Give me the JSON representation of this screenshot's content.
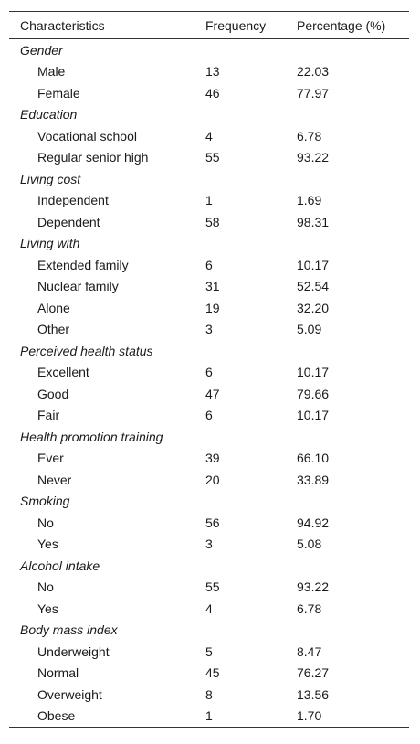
{
  "table": {
    "header": [
      "Characteristics",
      "Frequency",
      "Percentage (%)"
    ],
    "groups": [
      {
        "label": "Gender",
        "rows": [
          [
            "Male",
            "13",
            "22.03"
          ],
          [
            "Female",
            "46",
            "77.97"
          ]
        ]
      },
      {
        "label": "Education",
        "rows": [
          [
            "Vocational school",
            "4",
            "6.78"
          ],
          [
            "Regular senior high",
            "55",
            "93.22"
          ]
        ]
      },
      {
        "label": "Living cost",
        "rows": [
          [
            "Independent",
            "1",
            "1.69"
          ],
          [
            "Dependent",
            "58",
            "98.31"
          ]
        ]
      },
      {
        "label": "Living with",
        "rows": [
          [
            "Extended family",
            "6",
            "10.17"
          ],
          [
            "Nuclear family",
            "31",
            "52.54"
          ],
          [
            "Alone",
            "19",
            "32.20"
          ],
          [
            "Other",
            "3",
            "5.09"
          ]
        ]
      },
      {
        "label": "Perceived health status",
        "rows": [
          [
            "Excellent",
            "6",
            "10.17"
          ],
          [
            "Good",
            "47",
            "79.66"
          ],
          [
            "Fair",
            "6",
            "10.17"
          ]
        ]
      },
      {
        "label": "Health promotion training",
        "rows": [
          [
            "Ever",
            "39",
            "66.10"
          ],
          [
            "Never",
            "20",
            "33.89"
          ]
        ]
      },
      {
        "label": "Smoking",
        "rows": [
          [
            "No",
            "56",
            "94.92"
          ],
          [
            "Yes",
            "3",
            "5.08"
          ]
        ]
      },
      {
        "label": "Alcohol intake",
        "rows": [
          [
            "No",
            "55",
            "93.22"
          ],
          [
            "Yes",
            "4",
            "6.78"
          ]
        ]
      },
      {
        "label": "Body mass index",
        "rows": [
          [
            "Underweight",
            "5",
            "8.47"
          ],
          [
            "Normal",
            "45",
            "76.27"
          ],
          [
            "Overweight",
            "8",
            "13.56"
          ],
          [
            "Obese",
            "1",
            "1.70"
          ]
        ]
      }
    ]
  }
}
